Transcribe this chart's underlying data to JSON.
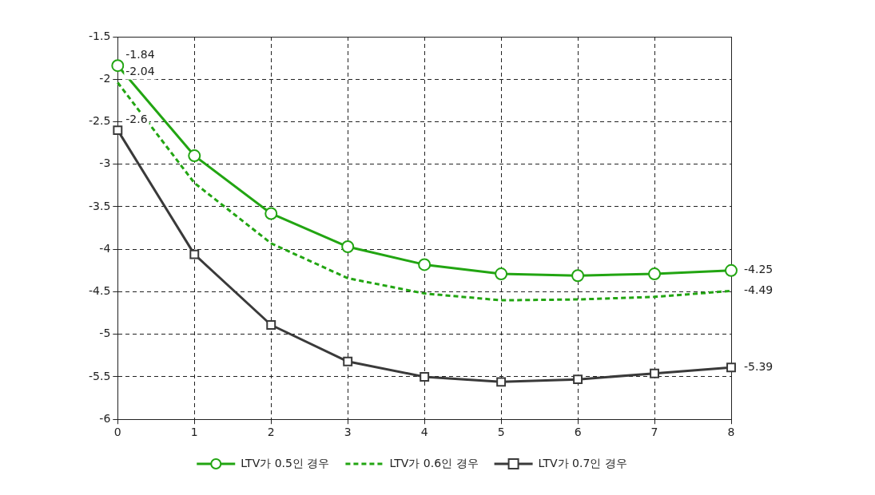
{
  "chart_data": {
    "type": "line",
    "x": [
      0,
      1,
      2,
      3,
      4,
      5,
      6,
      7,
      8
    ],
    "xlim": [
      0,
      8
    ],
    "xticks": [
      0,
      1,
      2,
      3,
      4,
      5,
      6,
      7,
      8
    ],
    "ylim": [
      -6,
      -1.5
    ],
    "yticks": [
      -6,
      -5.5,
      -5,
      -4.5,
      -4,
      -3.5,
      -3,
      -2.5,
      -2,
      -1.5
    ],
    "grid": true,
    "legend": "bottom",
    "series": [
      {
        "name": "LTV가 0.5인 경우",
        "color": "#22a512",
        "marker": "circle",
        "line_style": "solid",
        "values": [
          -1.84,
          -2.9,
          -3.58,
          -3.97,
          -4.18,
          -4.29,
          -4.31,
          -4.29,
          -4.25
        ],
        "value_labels": [
          "-1.84",
          null,
          null,
          null,
          null,
          null,
          null,
          null,
          "-4.25"
        ]
      },
      {
        "name": "LTV가 0.6인 경우",
        "color": "#22a512",
        "marker": "none",
        "line_style": "dashed",
        "values": [
          -2.04,
          -3.22,
          -3.93,
          -4.34,
          -4.52,
          -4.6,
          -4.59,
          -4.56,
          -4.49
        ],
        "value_labels": [
          "-2.04",
          null,
          null,
          null,
          null,
          null,
          null,
          null,
          "-4.49"
        ]
      },
      {
        "name": "LTV가 0.7인 경우",
        "color": "#3a3a3a",
        "marker": "square",
        "line_style": "solid",
        "values": [
          -2.6,
          -4.06,
          -4.89,
          -5.32,
          -5.5,
          -5.56,
          -5.53,
          -5.46,
          -5.39
        ],
        "value_labels": [
          "-2.6",
          null,
          null,
          null,
          null,
          null,
          null,
          null,
          "-5.39"
        ]
      }
    ]
  }
}
